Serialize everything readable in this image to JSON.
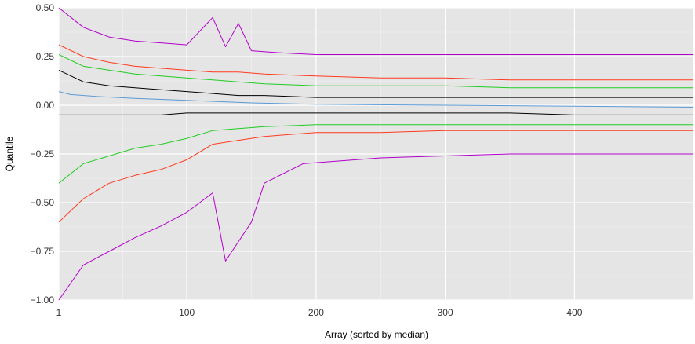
{
  "chart_data": {
    "type": "line",
    "title": "",
    "xlabel": "Array (sorted by median)",
    "ylabel": "Quantile",
    "xlim": [
      1,
      492
    ],
    "ylim": [
      -1.0,
      0.5
    ],
    "xticks": [
      1,
      100,
      200,
      300,
      400
    ],
    "yticks": [
      -1.0,
      -0.75,
      -0.5,
      -0.25,
      0.0,
      0.25,
      0.5
    ],
    "ytick_labels": [
      "−1.00",
      "−0.75",
      "−0.50",
      "−0.25",
      "0.00",
      "0.25",
      "0.50"
    ],
    "grid": true,
    "legend": "none",
    "series": [
      {
        "id": "q_max",
        "color": "#b300cc",
        "x": [
          1,
          20,
          40,
          60,
          80,
          100,
          120,
          130,
          140,
          150,
          170,
          200,
          250,
          300,
          350,
          400,
          450,
          492
        ],
        "y": [
          0.5,
          0.4,
          0.35,
          0.33,
          0.32,
          0.31,
          0.45,
          0.3,
          0.42,
          0.28,
          0.27,
          0.26,
          0.26,
          0.26,
          0.26,
          0.26,
          0.26,
          0.26
        ]
      },
      {
        "id": "q_upper_outer",
        "color": "#ff3b1f",
        "x": [
          1,
          20,
          40,
          60,
          80,
          100,
          120,
          140,
          160,
          200,
          250,
          300,
          350,
          400,
          450,
          492
        ],
        "y": [
          0.31,
          0.25,
          0.22,
          0.2,
          0.19,
          0.18,
          0.17,
          0.17,
          0.16,
          0.15,
          0.14,
          0.14,
          0.13,
          0.13,
          0.13,
          0.13
        ]
      },
      {
        "id": "q_upper_mid",
        "color": "#22cc22",
        "x": [
          1,
          20,
          40,
          60,
          80,
          100,
          120,
          140,
          160,
          200,
          250,
          300,
          350,
          400,
          450,
          492
        ],
        "y": [
          0.26,
          0.2,
          0.18,
          0.16,
          0.15,
          0.14,
          0.13,
          0.12,
          0.11,
          0.1,
          0.1,
          0.1,
          0.09,
          0.09,
          0.09,
          0.09
        ]
      },
      {
        "id": "q_upper_inner",
        "color": "#000000",
        "x": [
          1,
          20,
          40,
          60,
          80,
          100,
          120,
          140,
          160,
          200,
          250,
          300,
          350,
          400,
          450,
          492
        ],
        "y": [
          0.18,
          0.12,
          0.1,
          0.09,
          0.08,
          0.07,
          0.06,
          0.05,
          0.05,
          0.04,
          0.04,
          0.04,
          0.04,
          0.04,
          0.04,
          0.04
        ]
      },
      {
        "id": "median",
        "color": "#5b9bd5",
        "x": [
          1,
          10,
          30,
          60,
          100,
          150,
          200,
          300,
          400,
          492
        ],
        "y": [
          0.07,
          0.055,
          0.045,
          0.035,
          0.025,
          0.012,
          0.005,
          0.0,
          -0.005,
          -0.01
        ]
      },
      {
        "id": "q_lower_inner",
        "color": "#000000",
        "x": [
          1,
          20,
          40,
          60,
          80,
          100,
          120,
          140,
          160,
          200,
          250,
          300,
          350,
          400,
          450,
          492
        ],
        "y": [
          -0.05,
          -0.05,
          -0.05,
          -0.05,
          -0.05,
          -0.04,
          -0.04,
          -0.04,
          -0.04,
          -0.04,
          -0.04,
          -0.04,
          -0.04,
          -0.05,
          -0.05,
          -0.05
        ]
      },
      {
        "id": "q_lower_mid",
        "color": "#22cc22",
        "x": [
          1,
          20,
          40,
          60,
          80,
          100,
          120,
          140,
          160,
          200,
          250,
          300,
          350,
          400,
          450,
          492
        ],
        "y": [
          -0.4,
          -0.3,
          -0.26,
          -0.22,
          -0.2,
          -0.17,
          -0.13,
          -0.12,
          -0.11,
          -0.1,
          -0.1,
          -0.1,
          -0.1,
          -0.1,
          -0.1,
          -0.1
        ]
      },
      {
        "id": "q_lower_outer",
        "color": "#ff3b1f",
        "x": [
          1,
          20,
          40,
          60,
          80,
          100,
          120,
          140,
          160,
          200,
          250,
          300,
          350,
          400,
          450,
          492
        ],
        "y": [
          -0.6,
          -0.48,
          -0.4,
          -0.36,
          -0.33,
          -0.28,
          -0.2,
          -0.18,
          -0.16,
          -0.14,
          -0.14,
          -0.13,
          -0.13,
          -0.13,
          -0.13,
          -0.13
        ]
      },
      {
        "id": "q_min",
        "color": "#b300cc",
        "x": [
          1,
          20,
          40,
          60,
          80,
          100,
          120,
          130,
          140,
          150,
          160,
          190,
          250,
          300,
          350,
          400,
          450,
          492
        ],
        "y": [
          -1.0,
          -0.82,
          -0.75,
          -0.68,
          -0.62,
          -0.55,
          -0.45,
          -0.8,
          -0.7,
          -0.6,
          -0.4,
          -0.3,
          -0.27,
          -0.26,
          -0.25,
          -0.25,
          -0.25,
          -0.25
        ]
      }
    ]
  }
}
